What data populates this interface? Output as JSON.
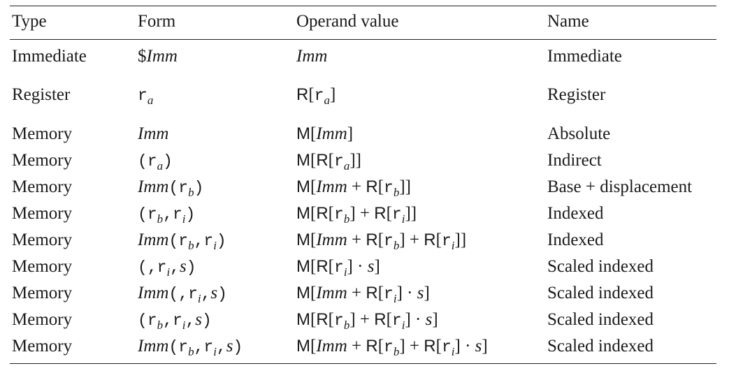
{
  "table": {
    "headers": [
      "Type",
      "Form",
      "Operand value",
      "Name"
    ],
    "rows": [
      {
        "type": "Immediate",
        "form": "$Imm",
        "operand": "Imm",
        "name": "Immediate"
      },
      {
        "type": "Register",
        "form": "r_a",
        "operand": "R[r_a]",
        "name": "Register"
      },
      {
        "type": "Memory",
        "form": "Imm",
        "operand": "M[Imm]",
        "name": "Absolute"
      },
      {
        "type": "Memory",
        "form": "(r_a)",
        "operand": "M[R[r_a]]",
        "name": "Indirect"
      },
      {
        "type": "Memory",
        "form": "Imm(r_b)",
        "operand": "M[Imm + R[r_b]]",
        "name": "Base + displacement"
      },
      {
        "type": "Memory",
        "form": "(r_b,r_i)",
        "operand": "M[R[r_b] + R[r_i]]",
        "name": "Indexed"
      },
      {
        "type": "Memory",
        "form": "Imm(r_b,r_i)",
        "operand": "M[Imm + R[r_b] + R[r_i]]",
        "name": "Indexed"
      },
      {
        "type": "Memory",
        "form": "(,r_i,s)",
        "operand": "M[R[r_i] · s]",
        "name": "Scaled indexed"
      },
      {
        "type": "Memory",
        "form": "Imm(,r_i,s)",
        "operand": "M[Imm + R[r_i] · s]",
        "name": "Scaled indexed"
      },
      {
        "type": "Memory",
        "form": "(r_b,r_i,s)",
        "operand": "M[R[r_b] + R[r_i] · s]",
        "name": "Scaled indexed"
      },
      {
        "type": "Memory",
        "form": "Imm(r_b,r_i,s)",
        "operand": "M[Imm + R[r_b] + R[r_i] · s]",
        "name": "Scaled indexed"
      }
    ]
  }
}
